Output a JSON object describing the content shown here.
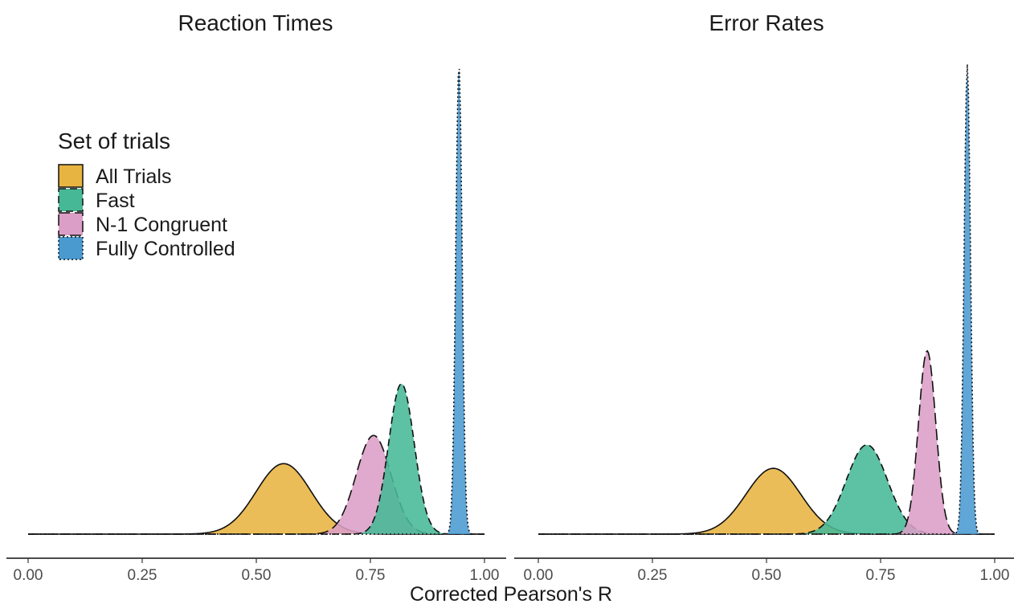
{
  "figure": {
    "xlabel": "Corrected Pearson's R",
    "legend": {
      "title": "Set of trials",
      "placement": "top-left of left panel",
      "entries": [
        {
          "label": "All Trials",
          "color": "#E8B441",
          "line": "solid"
        },
        {
          "label": "Fast",
          "color": "#47B896",
          "line": "dashed"
        },
        {
          "label": "N-1 Congruent",
          "color": "#DB9EC6",
          "line": "longdash"
        },
        {
          "label": "Fully Controlled",
          "color": "#4A9AD0",
          "line": "dotted"
        }
      ]
    }
  },
  "chart_data": [
    {
      "type": "area",
      "title": "Reaction Times",
      "xlabel": "Corrected Pearson's R",
      "ylabel": "",
      "xlim": [
        0,
        1
      ],
      "x_ticks": [
        "0.00",
        "0.25",
        "0.50",
        "0.75",
        "1.00"
      ],
      "grid": false,
      "series": [
        {
          "name": "All Trials",
          "mean": 0.56,
          "sd": 0.06,
          "peak_height": 0.15
        },
        {
          "name": "N-1 Congruent",
          "mean": 0.757,
          "sd": 0.038,
          "peak_height": 0.21
        },
        {
          "name": "Fast",
          "mean": 0.818,
          "sd": 0.028,
          "peak_height": 0.32
        },
        {
          "name": "Fully Controlled",
          "mean": 0.944,
          "sd": 0.007,
          "peak_height": 1.0
        }
      ]
    },
    {
      "type": "area",
      "title": "Error Rates",
      "xlabel": "Corrected Pearson's R",
      "ylabel": "",
      "xlim": [
        0,
        1
      ],
      "x_ticks": [
        "0.00",
        "0.25",
        "0.50",
        "0.75",
        "1.00"
      ],
      "grid": false,
      "series": [
        {
          "name": "All Trials",
          "mean": 0.515,
          "sd": 0.06,
          "peak_height": 0.14
        },
        {
          "name": "Fast",
          "mean": 0.72,
          "sd": 0.045,
          "peak_height": 0.19
        },
        {
          "name": "N-1 Congruent",
          "mean": 0.852,
          "sd": 0.019,
          "peak_height": 0.39
        },
        {
          "name": "Fully Controlled",
          "mean": 0.94,
          "sd": 0.007,
          "peak_height": 1.0
        }
      ]
    }
  ]
}
